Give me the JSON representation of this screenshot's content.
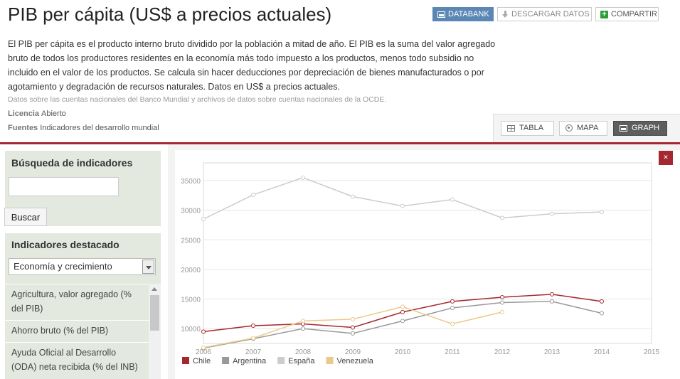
{
  "header": {
    "title": "PIB per cápita (US$ a precios actuales)",
    "databank_label": "DATABANK",
    "download_label": "DESCARGAR DATOS",
    "share_label": "COMPARTIR",
    "description": "El PIB per cápita es el producto interno bruto dividido por la población a mitad de año. El PIB es la suma del valor agregado bruto de todos los productores residentes en la economía más todo impuesto a los productos, menos todo subsidio no incluido en el valor de los productos. Se calcula sin hacer deducciones por depreciación de bienes manufacturados o por agotamiento y degradación de recursos naturales. Datos en US$ a precios actuales.",
    "source_note": "Datos sobre las cuentas nacionales del Banco Mundial y archivos de datos sobre cuentas nacionales de la OCDE.",
    "license_label": "Licencia",
    "license_value": "Abierto",
    "sources_label": "Fuentes",
    "sources_value": "Indicadores del desarrollo mundial"
  },
  "view_tabs": {
    "table": "TABLA",
    "map": "MAPA",
    "graph": "GRAPH"
  },
  "sidebar": {
    "search_heading": "Búsqueda de indicadores",
    "search_value": "",
    "search_button": "Buscar",
    "featured_heading": "Indicadores destacado",
    "category_selected": "Economía y crecimiento",
    "indicators": [
      "Agricultura, valor agregado (% del PIB)",
      "Ahorro bruto (% del PIB)",
      "Ayuda Oficial al Desarrollo (ODA) neta recibida (% del INB)"
    ]
  },
  "colors": {
    "chile": "#a4282f",
    "argentina": "#999999",
    "espana": "#cccccc",
    "venezuela": "#ebc98a",
    "accent": "#5b87b5"
  },
  "chart_data": {
    "type": "line",
    "x": [
      2006,
      2007,
      2008,
      2009,
      2010,
      2011,
      2012,
      2013,
      2014,
      2015
    ],
    "xlim": [
      2006,
      2015
    ],
    "ylim": [
      7500,
      38000
    ],
    "yticks": [
      10000,
      15000,
      20000,
      25000,
      30000,
      35000
    ],
    "grid": true,
    "legend": "bottom-left",
    "series": [
      {
        "name": "Chile",
        "color": "#a4282f",
        "values": [
          9500,
          10500,
          10800,
          10200,
          12800,
          14600,
          15300,
          15800,
          14600,
          null
        ]
      },
      {
        "name": "Argentina",
        "color": "#999999",
        "values": [
          6700,
          8300,
          10000,
          9200,
          11300,
          13500,
          14400,
          14600,
          12600,
          null
        ]
      },
      {
        "name": "España",
        "color": "#cccccc",
        "values": [
          28500,
          32600,
          35500,
          32300,
          30700,
          31800,
          28700,
          29400,
          29700,
          null
        ]
      },
      {
        "name": "Venezuela",
        "color": "#ebc98a",
        "values": [
          6800,
          8400,
          11300,
          11600,
          13700,
          10800,
          12800,
          null,
          null,
          null
        ]
      }
    ]
  }
}
